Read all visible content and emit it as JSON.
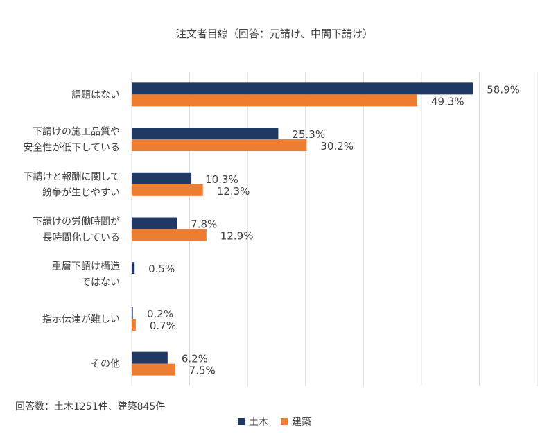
{
  "chart_data": {
    "type": "bar",
    "orientation": "horizontal",
    "title": "注文者目線（回答：元請け、中間下請け）",
    "categories": [
      [
        "課題はない"
      ],
      [
        "下請けの施工品質や",
        "安全性が低下している"
      ],
      [
        "下請けと報酬に関して",
        "紛争が生じやすい"
      ],
      [
        "下請けの労働時間が",
        "長時間化している"
      ],
      [
        "重層下請け構造",
        "ではない"
      ],
      [
        "指示伝達が難しい"
      ],
      [
        "その他"
      ]
    ],
    "series": [
      {
        "name": "土木",
        "color": "#1f3864",
        "values": [
          58.9,
          25.3,
          10.3,
          7.8,
          0.5,
          0.2,
          6.2
        ],
        "labels": [
          "58.9%",
          "25.3%",
          "10.3%",
          "7.8%",
          "0.5%",
          "0.2%",
          "6.2%"
        ]
      },
      {
        "name": "建築",
        "color": "#ed7d31",
        "values": [
          49.3,
          30.2,
          12.3,
          12.9,
          null,
          0.7,
          7.5
        ],
        "labels": [
          "49.3%",
          "30.2%",
          "12.3%",
          "12.9%",
          "",
          "0.7%",
          "7.5%"
        ]
      }
    ],
    "xlim": [
      0,
      70
    ],
    "grid": true,
    "legend": "bottom",
    "note": "回答数：土木1251件、建築845件"
  }
}
